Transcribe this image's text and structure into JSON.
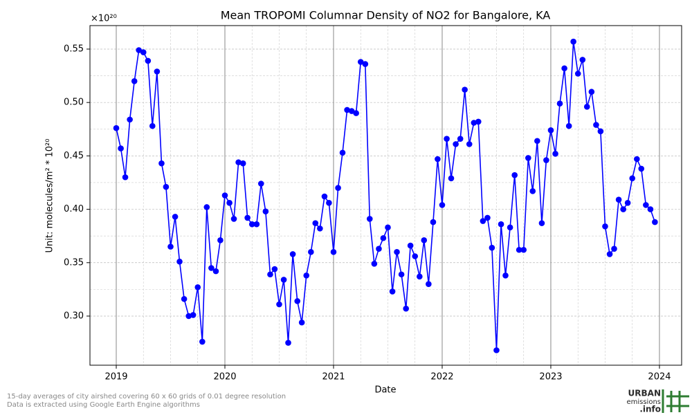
{
  "chart_data": {
    "type": "line",
    "title": "Mean TROPOMI Columnar Density of NO2 for Bangalore, KA",
    "x_label": "Date",
    "y_label": "Unit: molecules/m² * 10²⁰",
    "y_offset_label": "×10²⁰",
    "footnote": [
      "15-day averages of city airshed covering 60 x 60 grids of 0.01 degree resolution",
      "Data is extracted using Google Earth Engine algorithms"
    ],
    "xlim": [
      2018.758,
      2024.204
    ],
    "xticks": [
      2019,
      2020,
      2021,
      2022,
      2023,
      2024
    ],
    "ylim": [
      0.254,
      0.572
    ],
    "yticks": [
      {
        "value": 0.3,
        "label": "0.30"
      },
      0.35,
      {
        "value": 0.4,
        "label": "0.40"
      },
      0.45,
      {
        "value": 0.5,
        "label": "0.50"
      },
      0.55
    ],
    "grid": true,
    "series": [
      {
        "color": "#0000ff",
        "x": [
          2019.0,
          2019.042,
          2019.083,
          2019.125,
          2019.167,
          2019.208,
          2019.25,
          2019.292,
          2019.333,
          2019.375,
          2019.417,
          2019.458,
          2019.5,
          2019.542,
          2019.583,
          2019.625,
          2019.667,
          2019.708,
          2019.75,
          2019.792,
          2019.833,
          2019.875,
          2019.917,
          2019.958,
          2020.0,
          2020.042,
          2020.083,
          2020.125,
          2020.167,
          2020.208,
          2020.25,
          2020.292,
          2020.333,
          2020.375,
          2020.417,
          2020.458,
          2020.5,
          2020.542,
          2020.583,
          2020.625,
          2020.667,
          2020.708,
          2020.75,
          2020.792,
          2020.833,
          2020.875,
          2020.917,
          2020.958,
          2021.0,
          2021.042,
          2021.083,
          2021.125,
          2021.167,
          2021.208,
          2021.25,
          2021.292,
          2021.333,
          2021.375,
          2021.417,
          2021.458,
          2021.5,
          2021.542,
          2021.583,
          2021.625,
          2021.667,
          2021.708,
          2021.75,
          2021.792,
          2021.833,
          2021.875,
          2021.917,
          2021.958,
          2022.0,
          2022.042,
          2022.083,
          2022.125,
          2022.167,
          2022.208,
          2022.25,
          2022.292,
          2022.333,
          2022.375,
          2022.417,
          2022.458,
          2022.5,
          2022.542,
          2022.583,
          2022.625,
          2022.667,
          2022.708,
          2022.75,
          2022.792,
          2022.833,
          2022.875,
          2022.917,
          2022.958,
          2023.0,
          2023.042,
          2023.083,
          2023.125,
          2023.167,
          2023.208,
          2023.25,
          2023.292,
          2023.333,
          2023.375,
          2023.417,
          2023.458,
          2023.5,
          2023.542,
          2023.583,
          2023.625,
          2023.667,
          2023.708,
          2023.75,
          2023.792,
          2023.833,
          2023.875,
          2023.917,
          2023.958
        ],
        "values": [
          0.476,
          0.457,
          0.43,
          0.484,
          0.52,
          0.549,
          0.547,
          0.539,
          0.478,
          0.529,
          0.443,
          0.421,
          0.365,
          0.393,
          0.351,
          0.316,
          0.3,
          0.301,
          0.327,
          0.276,
          0.402,
          0.345,
          0.342,
          0.371,
          0.413,
          0.406,
          0.391,
          0.444,
          0.443,
          0.392,
          0.386,
          0.386,
          0.424,
          0.398,
          0.339,
          0.344,
          0.311,
          0.334,
          0.275,
          0.358,
          0.314,
          0.294,
          0.338,
          0.36,
          0.387,
          0.382,
          0.412,
          0.406,
          0.36,
          0.42,
          0.453,
          0.493,
          0.492,
          0.49,
          0.538,
          0.536,
          0.391,
          0.349,
          0.363,
          0.373,
          0.383,
          0.323,
          0.36,
          0.339,
          0.307,
          0.366,
          0.356,
          0.337,
          0.371,
          0.33,
          0.388,
          0.447,
          0.404,
          0.466,
          0.429,
          0.461,
          0.466,
          0.512,
          0.461,
          0.481,
          0.482,
          0.389,
          0.392,
          0.364,
          0.268,
          0.386,
          0.338,
          0.383,
          0.432,
          0.362,
          0.362,
          0.448,
          0.417,
          0.464,
          0.387,
          0.446,
          0.474,
          0.452,
          0.499,
          0.532,
          0.478,
          0.557,
          0.527,
          0.54,
          0.496,
          0.51,
          0.479,
          0.473,
          0.384,
          0.358,
          0.363,
          0.409,
          0.4,
          0.406,
          0.429,
          0.447,
          0.438,
          0.404,
          0.4,
          0.388
        ]
      }
    ]
  },
  "logo": {
    "line1": "URBAN",
    "line2": "emissions",
    "line3": ".info"
  }
}
